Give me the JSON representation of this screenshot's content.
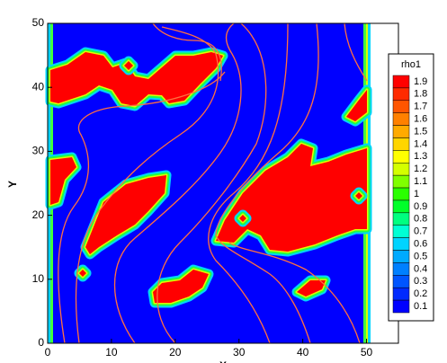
{
  "chart_data": {
    "type": "contour",
    "xlabel": "X",
    "ylabel": "Y",
    "xlim": [
      0,
      55
    ],
    "ylim": [
      0,
      50
    ],
    "xticks": [
      0,
      10,
      20,
      30,
      40,
      50
    ],
    "yticks": [
      0,
      10,
      20,
      30,
      40,
      50
    ],
    "legend": {
      "title": "rho1",
      "levels": [
        1.9,
        1.8,
        1.7,
        1.6,
        1.5,
        1.4,
        1.3,
        1.2,
        1.1,
        1,
        0.9,
        0.8,
        0.7,
        0.6,
        0.5,
        0.4,
        0.3,
        0.2,
        0.1
      ],
      "colors": [
        "#ff0000",
        "#ff2a00",
        "#ff5500",
        "#ff8000",
        "#ffaa00",
        "#ffd500",
        "#ffff00",
        "#d4ff00",
        "#80ff00",
        "#2aff00",
        "#00ff2a",
        "#00ff80",
        "#00ffd4",
        "#00d4ff",
        "#00aaff",
        "#0080ff",
        "#0055ff",
        "#002aff",
        "#0000ff"
      ]
    }
  }
}
